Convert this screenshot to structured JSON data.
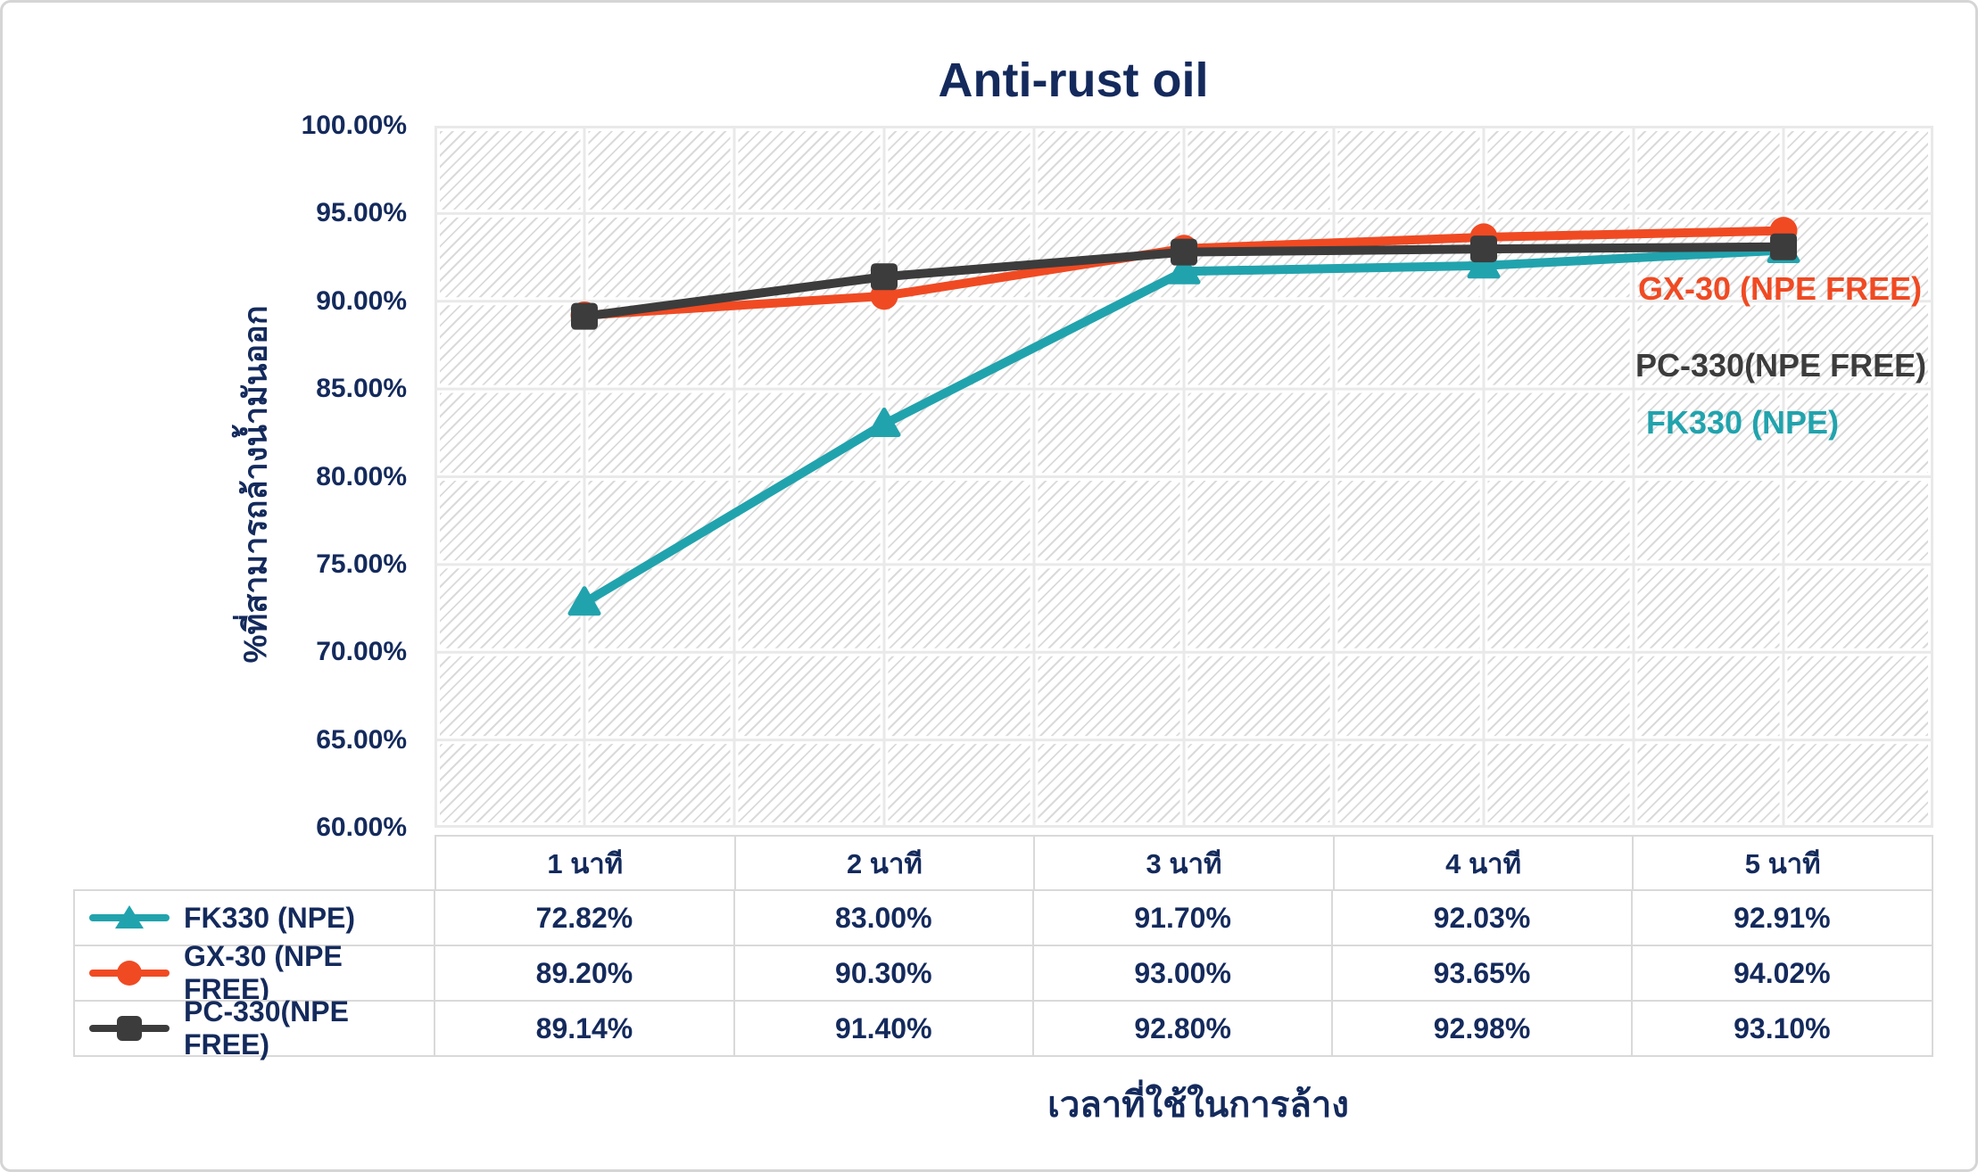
{
  "chart_data": {
    "type": "line",
    "title": "Anti-rust oil",
    "xlabel": "เวลาที่ใช้ในการล้าง",
    "ylabel": "%ที่สามารถล้างน้ำมันออก",
    "categories": [
      "1 นาที",
      "2 นาที",
      "3 นาที",
      "4 นาที",
      "5 นาที"
    ],
    "ylim": [
      60,
      100
    ],
    "y_ticks": [
      "100.00%",
      "95.00%",
      "90.00%",
      "85.00%",
      "80.00%",
      "75.00%",
      "70.00%",
      "65.00%",
      "60.00%"
    ],
    "grid": true,
    "plot_background": "diagonal-hatch",
    "legend_position": "table-below-left",
    "series": [
      {
        "name": "FK330 (NPE)",
        "marker": "triangle",
        "color": "#21A3AD",
        "values": [
          72.82,
          83.0,
          91.7,
          92.03,
          92.91
        ],
        "values_display": [
          "72.82%",
          "83.00%",
          "91.70%",
          "92.03%",
          "92.91%"
        ]
      },
      {
        "name": "GX-30 (NPE FREE)",
        "marker": "circle",
        "color": "#F04A23",
        "values": [
          89.2,
          90.3,
          93.0,
          93.65,
          94.02
        ],
        "values_display": [
          "89.20%",
          "90.30%",
          "93.00%",
          "93.65%",
          "94.02%"
        ]
      },
      {
        "name": "PC-330(NPE FREE)",
        "marker": "square",
        "color": "#3C3C3C",
        "values": [
          89.14,
          91.4,
          92.8,
          92.98,
          93.1
        ],
        "values_display": [
          "89.14%",
          "91.40%",
          "92.80%",
          "92.98%",
          "93.10%"
        ]
      }
    ],
    "in_chart_labels": [
      "GX-30 (NPE FREE)",
      "PC-330(NPE FREE)",
      "FK330 (NPE)"
    ],
    "colors": {
      "text_navy": "#142A5C",
      "gridline": "#E9E9E9",
      "hatch": "#DADADA",
      "table_border": "#D9D9D9",
      "plot_bg": "#FFFFFF"
    }
  }
}
